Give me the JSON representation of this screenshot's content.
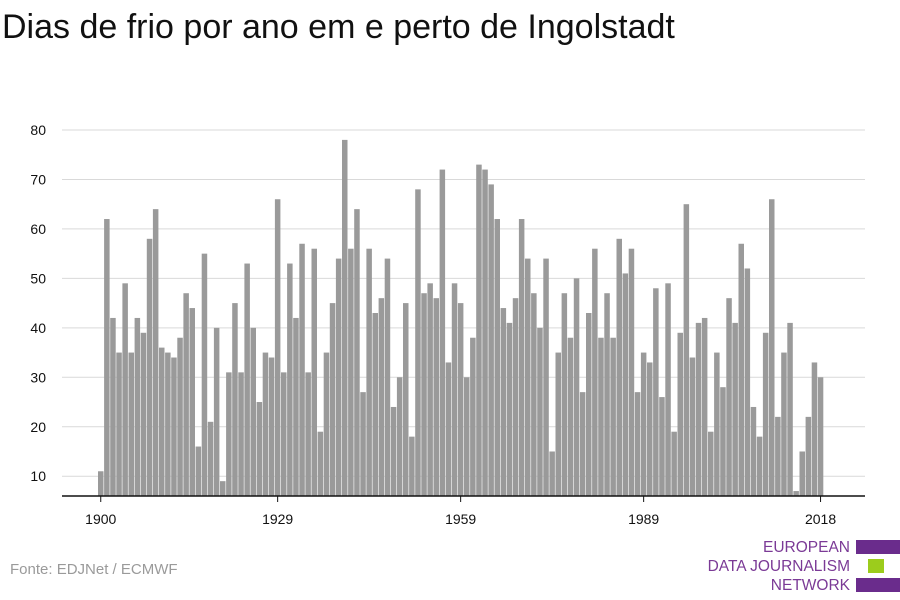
{
  "title": "Dias de frio por ano em e perto de Ingolstadt",
  "source": "Fonte: EDJNet / ECMWF",
  "logo": {
    "lines": [
      "EUROPEAN",
      "DATA JOURNALISM",
      "NETWORK"
    ],
    "colors": {
      "purple": "#6a2c8c",
      "green": "#9ccc1c"
    }
  },
  "chart_data": {
    "type": "bar",
    "title": "Dias de frio por ano em e perto de Ingolstadt",
    "xlabel": "",
    "ylabel": "",
    "x_ticks": [
      1900,
      1929,
      1959,
      1989,
      2018
    ],
    "y_ticks": [
      10,
      20,
      30,
      40,
      50,
      60,
      70,
      80
    ],
    "ylim": [
      6,
      82
    ],
    "xlim": [
      1900,
      2018
    ],
    "grid": true,
    "bar_color": "#9a9a9a",
    "years": [
      1900,
      1901,
      1902,
      1903,
      1904,
      1905,
      1906,
      1907,
      1908,
      1909,
      1910,
      1911,
      1912,
      1913,
      1914,
      1915,
      1916,
      1917,
      1918,
      1919,
      1920,
      1921,
      1922,
      1923,
      1924,
      1925,
      1926,
      1927,
      1928,
      1929,
      1930,
      1931,
      1932,
      1933,
      1934,
      1935,
      1936,
      1937,
      1938,
      1939,
      1940,
      1941,
      1942,
      1943,
      1944,
      1945,
      1946,
      1947,
      1948,
      1949,
      1950,
      1951,
      1952,
      1953,
      1954,
      1955,
      1956,
      1957,
      1958,
      1959,
      1960,
      1961,
      1962,
      1963,
      1964,
      1965,
      1966,
      1967,
      1968,
      1969,
      1970,
      1971,
      1972,
      1973,
      1974,
      1975,
      1976,
      1977,
      1978,
      1979,
      1980,
      1981,
      1982,
      1983,
      1984,
      1985,
      1986,
      1987,
      1988,
      1989,
      1990,
      1991,
      1992,
      1993,
      1994,
      1995,
      1996,
      1997,
      1998,
      1999,
      2000,
      2001,
      2002,
      2003,
      2004,
      2005,
      2006,
      2007,
      2008,
      2009,
      2010,
      2011,
      2012,
      2013,
      2014,
      2015,
      2016,
      2017,
      2018
    ],
    "values": [
      11,
      62,
      42,
      35,
      49,
      35,
      42,
      39,
      58,
      64,
      36,
      35,
      34,
      38,
      47,
      44,
      16,
      55,
      21,
      40,
      9,
      31,
      45,
      31,
      53,
      40,
      25,
      35,
      34,
      66,
      31,
      53,
      42,
      57,
      31,
      56,
      19,
      35,
      45,
      54,
      78,
      56,
      64,
      27,
      56,
      43,
      46,
      54,
      24,
      30,
      45,
      18,
      68,
      47,
      49,
      46,
      72,
      33,
      49,
      45,
      30,
      38,
      73,
      72,
      69,
      62,
      44,
      41,
      46,
      62,
      54,
      47,
      40,
      54,
      15,
      35,
      47,
      38,
      50,
      27,
      43,
      56,
      38,
      47,
      38,
      58,
      51,
      56,
      27,
      35,
      33,
      48,
      26,
      49,
      19,
      39,
      65,
      34,
      41,
      42,
      19,
      35,
      28,
      46,
      41,
      57,
      52,
      24,
      18,
      39,
      66,
      22,
      35,
      41,
      7,
      15,
      22,
      33,
      30
    ]
  }
}
